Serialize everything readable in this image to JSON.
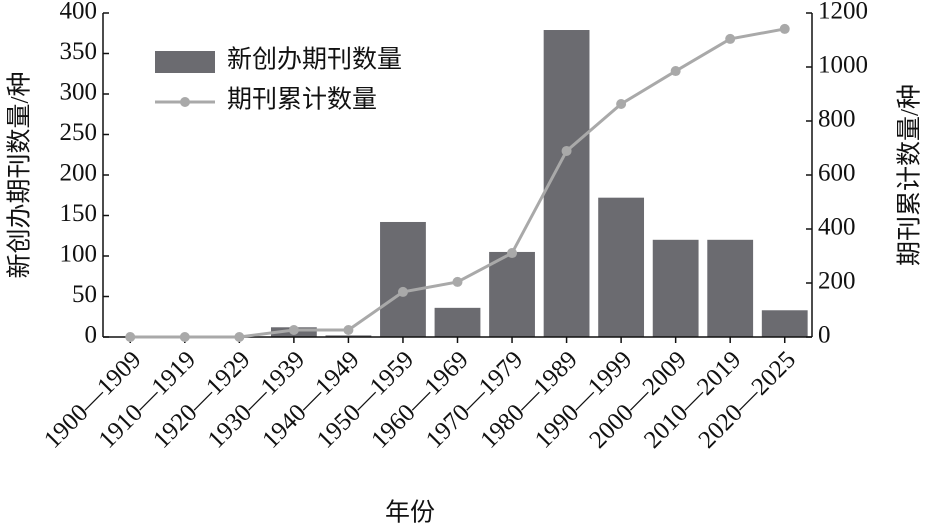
{
  "chart_data": {
    "type": "bar_line",
    "x_label": "年份",
    "y_label": "新创办期刊数量/种",
    "y2_label": "期刊累计数量/种",
    "categories": [
      "1900—1909",
      "1910—1919",
      "1920—1929",
      "1930—1939",
      "1940—1949",
      "1950—1959",
      "1960—1969",
      "1970—1979",
      "1980—1989",
      "1990—1999",
      "2000—2009",
      "2010—2019",
      "2020—2025"
    ],
    "series": [
      {
        "name": "新创办期刊数量",
        "type": "bar",
        "color": "#6b6b70",
        "values": [
          0,
          0,
          0,
          12,
          2,
          142,
          36,
          105,
          379,
          172,
          120,
          120,
          33
        ]
      },
      {
        "name": "期刊累计数量",
        "type": "line",
        "axis": "y2",
        "color": "#a9a9a9",
        "values": [
          0,
          0,
          0,
          26,
          26,
          167,
          204,
          311,
          689,
          863,
          985,
          1104,
          1141
        ]
      }
    ],
    "ylim": [
      0,
      400
    ],
    "yticks": [
      0,
      50,
      100,
      150,
      200,
      250,
      300,
      350,
      400
    ],
    "y2lim": [
      0,
      1200
    ],
    "y2ticks": [
      0,
      200,
      400,
      600,
      800,
      1000,
      1200
    ],
    "legend": "upper-left"
  }
}
